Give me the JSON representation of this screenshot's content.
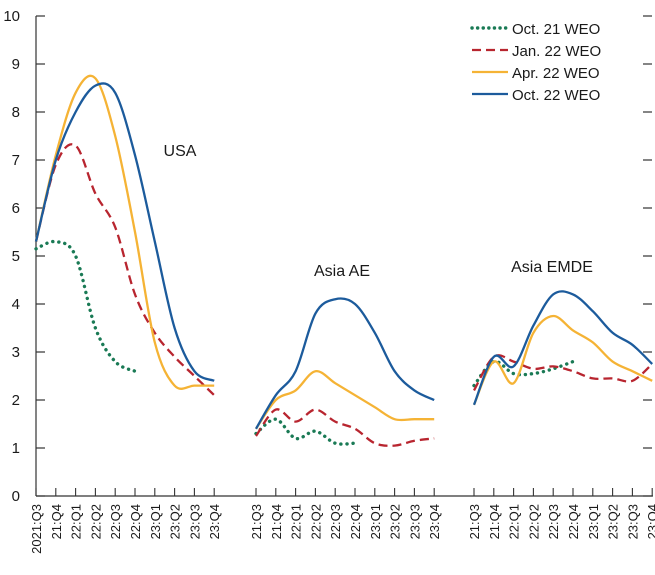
{
  "chart_data": {
    "type": "line",
    "title": "",
    "xlabel": "",
    "ylabel": "",
    "ylim": [
      0,
      10
    ],
    "y_ticks": [
      "0",
      "1",
      "2",
      "3",
      "4",
      "5",
      "6",
      "7",
      "8",
      "9",
      "10"
    ],
    "legend_position": "top-right",
    "grid": false,
    "panels": [
      {
        "label": "USA",
        "x_labels": [
          "2021:Q3",
          "21:Q4",
          "22:Q1",
          "22:Q2",
          "22:Q3",
          "22:Q4",
          "23:Q1",
          "23:Q2",
          "23:Q3",
          "23:Q4"
        ]
      },
      {
        "label": "Asia AE",
        "x_labels": [
          "21:Q3",
          "21:Q4",
          "22:Q1",
          "22:Q2",
          "22:Q3",
          "22:Q4",
          "23:Q1",
          "23:Q2",
          "23:Q3",
          "23:Q4"
        ]
      },
      {
        "label": "Asia EMDE",
        "x_labels": [
          "21:Q3",
          "21:Q4",
          "22:Q1",
          "22:Q2",
          "22:Q3",
          "22:Q4",
          "23:Q1",
          "23:Q2",
          "23:Q3",
          "23:Q4"
        ]
      }
    ],
    "series": [
      {
        "name": "Oct. 21 WEO",
        "color": "#1a7a55",
        "style": "dotted",
        "panels": [
          [
            5.15,
            5.3,
            5.0,
            3.5,
            2.8,
            2.6
          ],
          [
            1.3,
            1.6,
            1.2,
            1.35,
            1.1,
            1.1
          ],
          [
            2.3,
            2.8,
            2.55,
            2.55,
            2.65,
            2.8
          ]
        ]
      },
      {
        "name": "Jan. 22 WEO",
        "color": "#b8252f",
        "style": "dashed",
        "panels": [
          [
            5.3,
            6.9,
            7.3,
            6.3,
            5.6,
            4.2,
            3.4,
            2.9,
            2.5,
            2.1
          ],
          [
            1.25,
            1.8,
            1.55,
            1.8,
            1.55,
            1.4,
            1.1,
            1.05,
            1.15,
            1.2
          ],
          [
            2.2,
            2.9,
            2.8,
            2.65,
            2.7,
            2.6,
            2.45,
            2.45,
            2.4,
            2.75
          ]
        ]
      },
      {
        "name": "Apr. 22 WEO",
        "color": "#f5b335",
        "style": "solid",
        "panels": [
          [
            5.3,
            7.1,
            8.4,
            8.7,
            7.5,
            5.5,
            3.2,
            2.3,
            2.3,
            2.3
          ],
          [
            1.4,
            2.0,
            2.2,
            2.6,
            2.35,
            2.1,
            1.85,
            1.6,
            1.6,
            1.6
          ],
          [
            1.9,
            2.8,
            2.35,
            3.4,
            3.75,
            3.45,
            3.2,
            2.8,
            2.6,
            2.4
          ]
        ]
      },
      {
        "name": "Oct. 22 WEO",
        "color": "#1c5b9c",
        "style": "solid",
        "panels": [
          [
            5.3,
            7.0,
            8.0,
            8.55,
            8.4,
            7.1,
            5.3,
            3.5,
            2.6,
            2.4
          ],
          [
            1.4,
            2.1,
            2.6,
            3.8,
            4.1,
            4.0,
            3.4,
            2.6,
            2.2,
            2.0
          ],
          [
            1.9,
            2.9,
            2.7,
            3.55,
            4.2,
            4.2,
            3.85,
            3.4,
            3.15,
            2.75
          ]
        ]
      }
    ]
  }
}
